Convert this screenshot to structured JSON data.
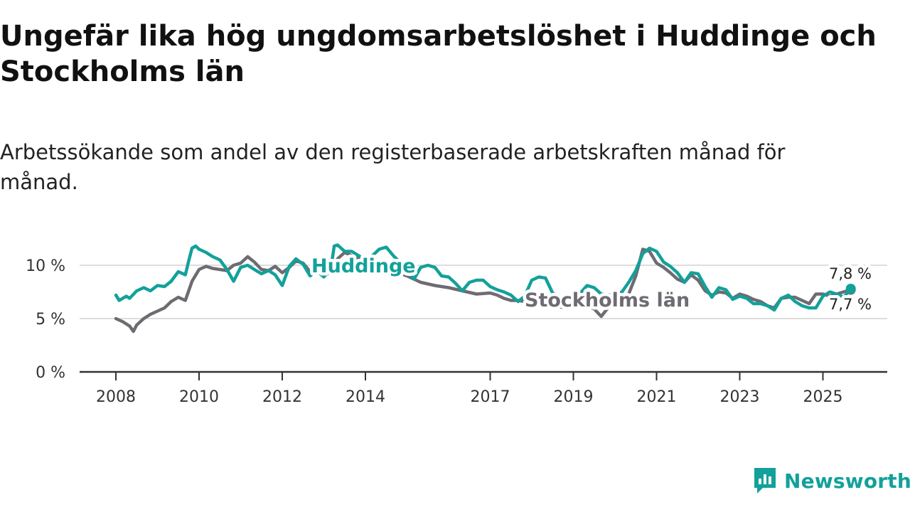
{
  "title": "Ungefär lika hög ungdomsarbetslöshet i Huddinge och Stockholms län",
  "subtitle": "Arbetssökande som andel av den registerbaserade arbetskraften månad för månad.",
  "brand": {
    "name": "Newsworthy",
    "icon": "newsworthy-logo-icon",
    "color": "#12a19a"
  },
  "chart_data": {
    "type": "line",
    "title": "Ungefär lika hög ungdomsarbetslöshet i Huddinge och Stockholms län",
    "subtitle": "Arbetssökande som andel av den registerbaserade arbetskraften månad för månad.",
    "xlabel": "",
    "ylabel": "",
    "x_range": [
      2008,
      2026.5
    ],
    "ylim": [
      0,
      12
    ],
    "y_ticks": [
      0,
      5,
      10
    ],
    "y_tick_labels": [
      "0 %",
      "5 %",
      "10 %"
    ],
    "x_ticks": [
      2008,
      2010,
      2012,
      2014,
      2017,
      2019,
      2021,
      2023,
      2025
    ],
    "x_tick_labels": [
      "2008",
      "2010",
      "2012",
      "2014",
      "2017",
      "2019",
      "2021",
      "2023",
      "2025"
    ],
    "grid": true,
    "series": [
      {
        "name": "Stockholms län",
        "color": "#6e6b72",
        "points": [
          [
            2008.0,
            5.0
          ],
          [
            2008.17,
            4.7
          ],
          [
            2008.33,
            4.3
          ],
          [
            2008.42,
            3.8
          ],
          [
            2008.5,
            4.4
          ],
          [
            2008.67,
            5.0
          ],
          [
            2008.83,
            5.4
          ],
          [
            2009.0,
            5.7
          ],
          [
            2009.17,
            6.0
          ],
          [
            2009.33,
            6.6
          ],
          [
            2009.5,
            7.0
          ],
          [
            2009.67,
            6.7
          ],
          [
            2009.83,
            8.5
          ],
          [
            2010.0,
            9.6
          ],
          [
            2010.17,
            9.9
          ],
          [
            2010.33,
            9.7
          ],
          [
            2010.5,
            9.6
          ],
          [
            2010.67,
            9.5
          ],
          [
            2010.83,
            10.0
          ],
          [
            2011.0,
            10.2
          ],
          [
            2011.17,
            10.8
          ],
          [
            2011.33,
            10.3
          ],
          [
            2011.5,
            9.6
          ],
          [
            2011.67,
            9.5
          ],
          [
            2011.83,
            9.9
          ],
          [
            2012.0,
            9.3
          ],
          [
            2012.17,
            9.8
          ],
          [
            2012.33,
            10.4
          ],
          [
            2012.5,
            10.2
          ],
          [
            2012.67,
            9.4
          ],
          [
            2012.83,
            9.6
          ],
          [
            2013.0,
            9.1
          ],
          [
            2013.17,
            9.3
          ],
          [
            2013.33,
            10.6
          ],
          [
            2013.5,
            11.2
          ],
          [
            2014.0,
            10.3
          ],
          [
            2014.33,
            9.7
          ],
          [
            2014.67,
            9.4
          ],
          [
            2015.0,
            9.0
          ],
          [
            2015.33,
            8.4
          ],
          [
            2015.67,
            8.1
          ],
          [
            2016.0,
            7.9
          ],
          [
            2016.33,
            7.6
          ],
          [
            2016.67,
            7.3
          ],
          [
            2017.0,
            7.4
          ],
          [
            2017.17,
            7.2
          ],
          [
            2017.33,
            6.9
          ],
          [
            2017.5,
            6.7
          ],
          [
            2017.67,
            6.7
          ],
          [
            2017.83,
            6.6
          ],
          [
            2018.0,
            6.6
          ],
          [
            2018.17,
            7.0
          ],
          [
            2018.33,
            7.1
          ],
          [
            2018.5,
            6.5
          ],
          [
            2018.67,
            6.1
          ],
          [
            2018.83,
            6.0
          ],
          [
            2019.0,
            6.5
          ],
          [
            2019.17,
            6.2
          ],
          [
            2019.33,
            6.2
          ],
          [
            2019.5,
            5.9
          ],
          [
            2019.67,
            5.2
          ],
          [
            2019.83,
            6.0
          ],
          [
            2020.0,
            6.3
          ],
          [
            2020.17,
            6.5
          ],
          [
            2020.33,
            7.3
          ],
          [
            2020.5,
            9.0
          ],
          [
            2020.67,
            11.5
          ],
          [
            2020.83,
            11.3
          ],
          [
            2021.0,
            10.2
          ],
          [
            2021.17,
            9.8
          ],
          [
            2021.33,
            9.3
          ],
          [
            2021.5,
            8.7
          ],
          [
            2021.67,
            8.4
          ],
          [
            2021.83,
            9.1
          ],
          [
            2022.0,
            8.6
          ],
          [
            2022.17,
            7.6
          ],
          [
            2022.33,
            7.2
          ],
          [
            2022.5,
            7.5
          ],
          [
            2022.67,
            7.4
          ],
          [
            2022.83,
            6.9
          ],
          [
            2023.0,
            7.3
          ],
          [
            2023.17,
            7.1
          ],
          [
            2023.33,
            6.8
          ],
          [
            2023.5,
            6.6
          ],
          [
            2023.67,
            6.2
          ],
          [
            2023.83,
            6.0
          ],
          [
            2024.0,
            6.9
          ],
          [
            2024.17,
            7.0
          ],
          [
            2024.33,
            7.0
          ],
          [
            2024.5,
            6.7
          ],
          [
            2024.67,
            6.4
          ],
          [
            2024.83,
            7.3
          ],
          [
            2025.0,
            7.3
          ],
          [
            2025.17,
            7.1
          ],
          [
            2025.33,
            7.3
          ],
          [
            2025.5,
            7.5
          ],
          [
            2025.67,
            7.7
          ]
        ],
        "label": "Stockholms län",
        "end_label": "7,7 %",
        "end_value": 7.7
      },
      {
        "name": "Huddinge",
        "color": "#12a19a",
        "points": [
          [
            2008.0,
            7.2
          ],
          [
            2008.08,
            6.7
          ],
          [
            2008.25,
            7.1
          ],
          [
            2008.33,
            6.9
          ],
          [
            2008.5,
            7.6
          ],
          [
            2008.67,
            7.9
          ],
          [
            2008.83,
            7.6
          ],
          [
            2009.0,
            8.1
          ],
          [
            2009.17,
            8.0
          ],
          [
            2009.33,
            8.5
          ],
          [
            2009.5,
            9.4
          ],
          [
            2009.67,
            9.1
          ],
          [
            2009.75,
            10.4
          ],
          [
            2009.83,
            11.6
          ],
          [
            2009.92,
            11.8
          ],
          [
            2010.0,
            11.5
          ],
          [
            2010.17,
            11.2
          ],
          [
            2010.33,
            10.8
          ],
          [
            2010.5,
            10.5
          ],
          [
            2010.67,
            9.6
          ],
          [
            2010.83,
            8.5
          ],
          [
            2011.0,
            9.8
          ],
          [
            2011.17,
            10.0
          ],
          [
            2011.33,
            9.6
          ],
          [
            2011.5,
            9.2
          ],
          [
            2011.67,
            9.5
          ],
          [
            2011.83,
            9.1
          ],
          [
            2012.0,
            8.1
          ],
          [
            2012.17,
            9.9
          ],
          [
            2012.33,
            10.6
          ],
          [
            2012.5,
            10.1
          ],
          [
            2012.67,
            9.0
          ],
          [
            2012.83,
            9.5
          ],
          [
            2013.0,
            8.9
          ],
          [
            2013.17,
            9.7
          ],
          [
            2013.25,
            11.8
          ],
          [
            2013.33,
            11.9
          ],
          [
            2013.5,
            11.3
          ],
          [
            2013.67,
            11.3
          ],
          [
            2014.0,
            10.5
          ],
          [
            2014.17,
            10.9
          ],
          [
            2014.33,
            11.5
          ],
          [
            2014.5,
            11.7
          ],
          [
            2014.67,
            10.9
          ],
          [
            2015.0,
            9.6
          ],
          [
            2015.17,
            8.7
          ],
          [
            2015.33,
            9.8
          ],
          [
            2015.5,
            10.0
          ],
          [
            2015.67,
            9.8
          ],
          [
            2015.83,
            9.0
          ],
          [
            2016.0,
            8.9
          ],
          [
            2016.17,
            8.3
          ],
          [
            2016.33,
            7.6
          ],
          [
            2016.5,
            8.4
          ],
          [
            2016.67,
            8.6
          ],
          [
            2016.83,
            8.6
          ],
          [
            2017.0,
            8.0
          ],
          [
            2017.17,
            7.7
          ],
          [
            2017.33,
            7.5
          ],
          [
            2017.5,
            7.2
          ],
          [
            2017.67,
            6.6
          ],
          [
            2017.83,
            7.1
          ],
          [
            2018.0,
            8.6
          ],
          [
            2018.17,
            8.9
          ],
          [
            2018.33,
            8.8
          ],
          [
            2018.5,
            7.4
          ],
          [
            2018.67,
            7.0
          ],
          [
            2018.83,
            6.2
          ],
          [
            2019.0,
            6.9
          ],
          [
            2019.17,
            7.4
          ],
          [
            2019.33,
            8.1
          ],
          [
            2019.5,
            7.9
          ],
          [
            2019.67,
            7.3
          ],
          [
            2019.83,
            7.2
          ],
          [
            2020.0,
            7.3
          ],
          [
            2020.17,
            7.5
          ],
          [
            2020.33,
            8.4
          ],
          [
            2020.5,
            9.5
          ],
          [
            2020.67,
            11.1
          ],
          [
            2020.83,
            11.6
          ],
          [
            2021.0,
            11.3
          ],
          [
            2021.17,
            10.3
          ],
          [
            2021.33,
            9.9
          ],
          [
            2021.5,
            9.3
          ],
          [
            2021.67,
            8.4
          ],
          [
            2021.83,
            9.3
          ],
          [
            2022.0,
            9.2
          ],
          [
            2022.17,
            8.0
          ],
          [
            2022.33,
            7.0
          ],
          [
            2022.5,
            7.9
          ],
          [
            2022.67,
            7.7
          ],
          [
            2022.83,
            6.8
          ],
          [
            2023.0,
            7.1
          ],
          [
            2023.17,
            6.9
          ],
          [
            2023.33,
            6.4
          ],
          [
            2023.5,
            6.4
          ],
          [
            2023.67,
            6.2
          ],
          [
            2023.83,
            5.8
          ],
          [
            2024.0,
            6.9
          ],
          [
            2024.17,
            7.2
          ],
          [
            2024.33,
            6.6
          ],
          [
            2024.5,
            6.2
          ],
          [
            2024.67,
            6.0
          ],
          [
            2024.83,
            6.0
          ],
          [
            2025.0,
            7.1
          ],
          [
            2025.17,
            7.5
          ],
          [
            2025.33,
            7.3
          ],
          [
            2025.5,
            7.0
          ],
          [
            2025.67,
            7.8
          ]
        ],
        "label": "Huddinge",
        "end_label": "7,8 %",
        "end_value": 7.8
      }
    ]
  }
}
